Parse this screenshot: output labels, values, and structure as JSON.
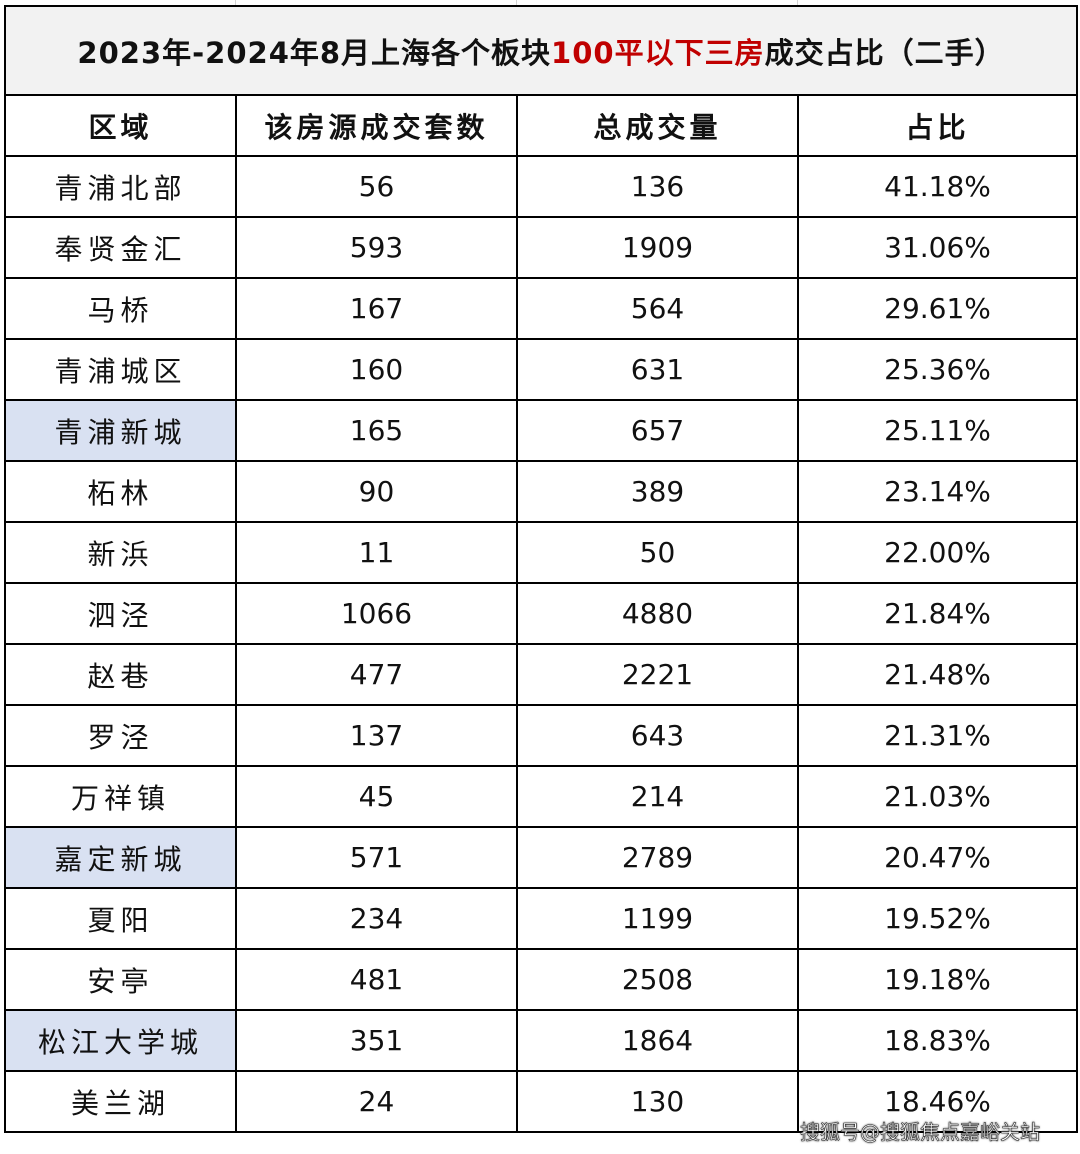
{
  "title": {
    "prefix": "2023年-2024年8月上海各个板块",
    "highlight": "100平以下三房",
    "suffix": "成交占比（二手）",
    "highlight_color": "#c00000"
  },
  "columns": [
    "区域",
    "该房源成交套数",
    "总成交量",
    "占比"
  ],
  "highlight_row_color": "#d9e1f2",
  "rows": [
    {
      "area": "青浦北部",
      "count": "56",
      "total": "136",
      "ratio": "41.18%",
      "highlighted": false
    },
    {
      "area": "奉贤金汇",
      "count": "593",
      "total": "1909",
      "ratio": "31.06%",
      "highlighted": false
    },
    {
      "area": "马桥",
      "count": "167",
      "total": "564",
      "ratio": "29.61%",
      "highlighted": false
    },
    {
      "area": "青浦城区",
      "count": "160",
      "total": "631",
      "ratio": "25.36%",
      "highlighted": false
    },
    {
      "area": "青浦新城",
      "count": "165",
      "total": "657",
      "ratio": "25.11%",
      "highlighted": true
    },
    {
      "area": "柘林",
      "count": "90",
      "total": "389",
      "ratio": "23.14%",
      "highlighted": false
    },
    {
      "area": "新浜",
      "count": "11",
      "total": "50",
      "ratio": "22.00%",
      "highlighted": false
    },
    {
      "area": "泗泾",
      "count": "1066",
      "total": "4880",
      "ratio": "21.84%",
      "highlighted": false
    },
    {
      "area": "赵巷",
      "count": "477",
      "total": "2221",
      "ratio": "21.48%",
      "highlighted": false
    },
    {
      "area": "罗泾",
      "count": "137",
      "total": "643",
      "ratio": "21.31%",
      "highlighted": false
    },
    {
      "area": "万祥镇",
      "count": "45",
      "total": "214",
      "ratio": "21.03%",
      "highlighted": false
    },
    {
      "area": "嘉定新城",
      "count": "571",
      "total": "2789",
      "ratio": "20.47%",
      "highlighted": true
    },
    {
      "area": "夏阳",
      "count": "234",
      "total": "1199",
      "ratio": "19.52%",
      "highlighted": false
    },
    {
      "area": "安亭",
      "count": "481",
      "total": "2508",
      "ratio": "19.18%",
      "highlighted": false
    },
    {
      "area": "松江大学城",
      "count": "351",
      "total": "1864",
      "ratio": "18.83%",
      "highlighted": true
    },
    {
      "area": "美兰湖",
      "count": "24",
      "total": "130",
      "ratio": "18.46%",
      "highlighted": false
    }
  ],
  "watermark": "搜狐号@搜狐焦点嘉峪关站"
}
